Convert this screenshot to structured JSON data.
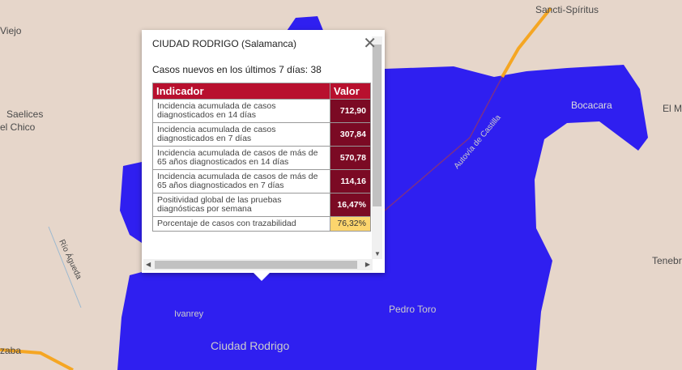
{
  "map": {
    "places": [
      "Sancti-Spíritus",
      "Viejo",
      "Saelices",
      "el Chico",
      "Bocacara",
      "El M",
      "Tenebr",
      "Pedro Toro",
      "Ivanrey",
      "Ciudad Rodrigo",
      "zaba",
      "Río Águeda",
      "Autovía de Castilla"
    ],
    "colors": {
      "land": "#e6d6ca",
      "region": "#2f1ff0",
      "highway": "#f5a623"
    }
  },
  "popup": {
    "title": "CIUDAD RODRIGO (Salamanca)",
    "cases_label": "Casos nuevos en los últimos 7 días:",
    "cases_value": "38",
    "close_icon": "close-icon",
    "headers": [
      "Indicador",
      "Valor"
    ],
    "rows": [
      {
        "label": "Incidencia acumulada de casos diagnosticados en 14 días",
        "value": "712,90"
      },
      {
        "label": "Incidencia acumulada de casos diagnosticados en 7 días",
        "value": "307,84"
      },
      {
        "label": "Incidencia acumulada de casos de más de 65 años diagnosticados en 14 días",
        "value": "570,78"
      },
      {
        "label": "Incidencia acumulada de casos de más de 65 años diagnosticados en 7 días",
        "value": "114,16"
      },
      {
        "label": "Positividad global de las pruebas diagnósticas por semana",
        "value": "16,47%"
      },
      {
        "label": "Porcentaje de casos con trazabilidad",
        "value": "76,32%"
      }
    ]
  }
}
